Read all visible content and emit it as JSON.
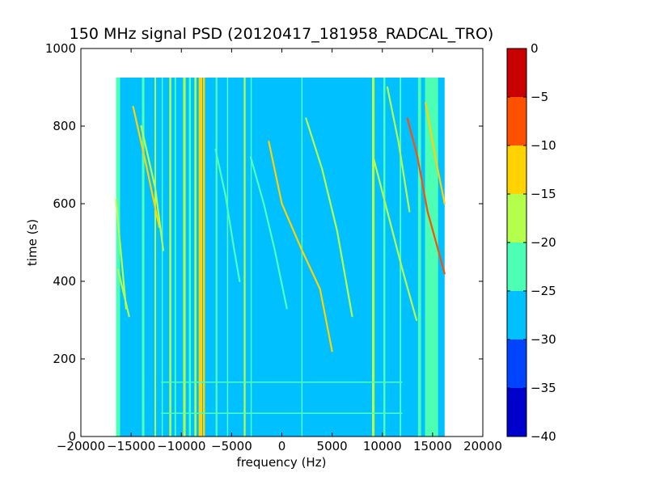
{
  "chart_data": {
    "type": "heatmap",
    "title": "150 MHz signal PSD (20120417_181958_RADCAL_TRO)",
    "xlabel": "frequency (Hz)",
    "ylabel": "time (s)",
    "xlim": [
      -20000,
      20000
    ],
    "ylim": [
      0,
      1000
    ],
    "xticks": [
      -20000,
      -15000,
      -10000,
      -5000,
      0,
      5000,
      10000,
      15000,
      20000
    ],
    "xtick_labels": [
      "−20000",
      "−15000",
      "−10000",
      "−5000",
      "0",
      "5000",
      "10000",
      "15000",
      "20000"
    ],
    "yticks": [
      0,
      200,
      400,
      600,
      800,
      1000
    ],
    "ytick_labels": [
      "0",
      "200",
      "400",
      "600",
      "800",
      "1000"
    ],
    "data_extent": {
      "x": [
        -16500,
        16200
      ],
      "y": [
        0,
        925
      ]
    },
    "background_level_db": -27.5,
    "colorbar": {
      "levels": [
        -40,
        -35,
        -30,
        -25,
        -20,
        -15,
        -10,
        -5,
        0
      ],
      "level_labels": [
        "−40",
        "−35",
        "−30",
        "−25",
        "−20",
        "−15",
        "−10",
        "−5",
        "0"
      ],
      "colors": [
        "#0000cd",
        "#0044ff",
        "#00c0ff",
        "#4cffb4",
        "#b4ff4c",
        "#ffd200",
        "#ff5000",
        "#c80000"
      ]
    },
    "vertical_bands": [
      {
        "x": -16300,
        "width": 400,
        "level_db": -22.5
      },
      {
        "x": -13800,
        "width": 250,
        "level_db": -22.5
      },
      {
        "x": -12600,
        "width": 150,
        "level_db": -17.5
      },
      {
        "x": -11900,
        "width": 120,
        "level_db": -22.5
      },
      {
        "x": -11100,
        "width": 200,
        "level_db": -17.5
      },
      {
        "x": -10600,
        "width": 150,
        "level_db": -22.5
      },
      {
        "x": -9700,
        "width": 250,
        "level_db": -17.5
      },
      {
        "x": -9150,
        "width": 200,
        "level_db": -22.5
      },
      {
        "x": -8600,
        "width": 200,
        "level_db": -17.5
      },
      {
        "x": -8100,
        "width": 350,
        "level_db": -12.5
      },
      {
        "x": -7750,
        "width": 200,
        "level_db": -12.5
      },
      {
        "x": -6500,
        "width": 180,
        "level_db": -22.5
      },
      {
        "x": -5400,
        "width": 120,
        "level_db": -22.5
      },
      {
        "x": -3700,
        "width": 180,
        "level_db": -17.5
      },
      {
        "x": -3050,
        "width": 120,
        "level_db": -22.5
      },
      {
        "x": 2000,
        "width": 120,
        "level_db": -22.5
      },
      {
        "x": 9100,
        "width": 250,
        "level_db": -17.5
      },
      {
        "x": 10200,
        "width": 200,
        "level_db": -22.5
      },
      {
        "x": 11800,
        "width": 150,
        "level_db": -22.5
      },
      {
        "x": 13700,
        "width": 300,
        "level_db": -22.5
      },
      {
        "x": 14900,
        "width": 1300,
        "level_db": -22.5
      }
    ],
    "drift_lines": [
      {
        "x": [
          -16500,
          -15500
        ],
        "y": [
          610,
          330
        ],
        "level_db": -17.5
      },
      {
        "x": [
          -16300,
          -15200
        ],
        "y": [
          430,
          310
        ],
        "level_db": -17.5
      },
      {
        "x": [
          -14800,
          -13500,
          -12200
        ],
        "y": [
          850,
          700,
          540
        ],
        "level_db": -12.5
      },
      {
        "x": [
          -14000,
          -12600,
          -11800
        ],
        "y": [
          800,
          640,
          480
        ],
        "level_db": -17.5
      },
      {
        "x": [
          -6600,
          -5600,
          -4800,
          -4200
        ],
        "y": [
          740,
          620,
          490,
          400
        ],
        "level_db": -22.5
      },
      {
        "x": [
          -3100,
          -1800,
          -700,
          500
        ],
        "y": [
          720,
          600,
          480,
          330
        ],
        "level_db": -22.5
      },
      {
        "x": [
          -1300,
          0,
          2000,
          3800,
          5000
        ],
        "y": [
          760,
          600,
          480,
          380,
          220
        ],
        "level_db": -12.5
      },
      {
        "x": [
          2400,
          4000,
          5500,
          7000
        ],
        "y": [
          820,
          690,
          530,
          310
        ],
        "level_db": -17.5
      },
      {
        "x": [
          9100,
          10500,
          12000,
          13400
        ],
        "y": [
          720,
          580,
          430,
          300
        ],
        "level_db": -17.5
      },
      {
        "x": [
          10500,
          11600,
          12700
        ],
        "y": [
          900,
          760,
          580
        ],
        "level_db": -17.5
      },
      {
        "x": [
          12500,
          13500,
          14500,
          16200
        ],
        "y": [
          820,
          720,
          580,
          420
        ],
        "level_db": -7.5
      },
      {
        "x": [
          14300,
          15200,
          16200
        ],
        "y": [
          860,
          730,
          600
        ],
        "level_db": -12.5
      }
    ],
    "horizontal_streaks": [
      {
        "x": [
          -12000,
          12000
        ],
        "y": 140,
        "level_db": -22.5
      },
      {
        "x": [
          -12000,
          12000
        ],
        "y": 60,
        "level_db": -22.5
      }
    ]
  }
}
